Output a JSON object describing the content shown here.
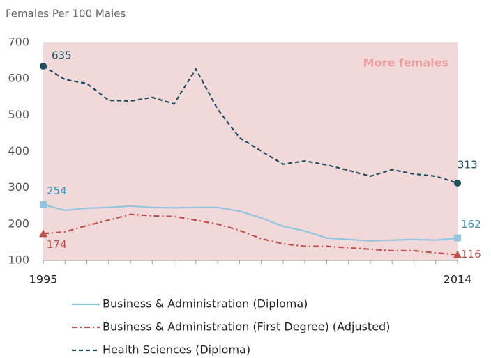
{
  "chart_data": {
    "type": "line",
    "y_axis_label": "Females Per 100 Males",
    "annotation": "More females",
    "shade": {
      "range": [
        100,
        700
      ],
      "color": "#f2d9d9"
    },
    "x": [
      1995,
      1996,
      1997,
      1998,
      1999,
      2000,
      2001,
      2002,
      2003,
      2004,
      2005,
      2006,
      2007,
      2008,
      2009,
      2010,
      2011,
      2012,
      2013,
      2014
    ],
    "xlim": [
      1995,
      2014
    ],
    "xticks": [
      1995,
      2014
    ],
    "ylim": [
      100,
      700
    ],
    "yticks": [
      100,
      200,
      300,
      400,
      500,
      600,
      700
    ],
    "series": [
      {
        "name": "Business & Administration (Diploma)",
        "color": "#92c5de",
        "dash": "solid",
        "marker": "square",
        "values": [
          254,
          238,
          244,
          246,
          250,
          246,
          245,
          246,
          246,
          236,
          217,
          194,
          181,
          162,
          158,
          154,
          156,
          158,
          156,
          162
        ]
      },
      {
        "name": "Business & Administration (First Degree) (Adjusted)",
        "color": "#c0504d",
        "dash": "dashdot",
        "marker": "triangle",
        "values": [
          174,
          179,
          196,
          211,
          227,
          223,
          221,
          211,
          200,
          183,
          160,
          146,
          139,
          139,
          135,
          131,
          127,
          127,
          121,
          116
        ]
      },
      {
        "name": "Health Sciences (Diploma)",
        "color": "#1f4e5f",
        "dash": "dashed",
        "marker": "circle",
        "values": [
          635,
          598,
          587,
          541,
          539,
          549,
          531,
          627,
          516,
          438,
          401,
          365,
          374,
          363,
          348,
          332,
          350,
          338,
          332,
          313
        ]
      }
    ]
  }
}
